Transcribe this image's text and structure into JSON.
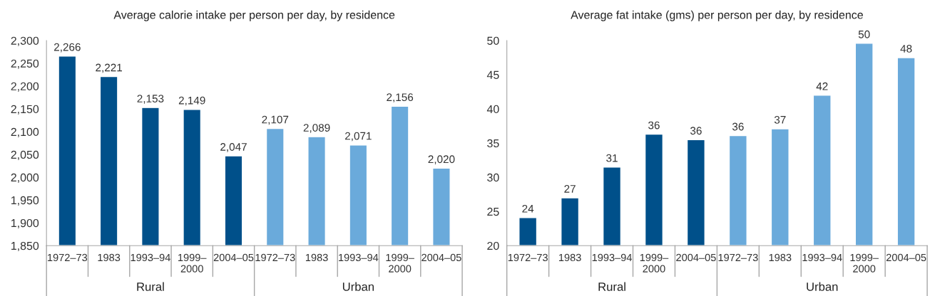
{
  "chart_data": [
    {
      "type": "bar",
      "title": "Average calorie intake per person per day, by residence",
      "categories": [
        "1972–73",
        "1983",
        "1993–94",
        "1999–\n2000",
        "2004–05",
        "1972–73",
        "1983",
        "1993–94",
        "1999–\n2000",
        "2004–05"
      ],
      "values": [
        2266,
        2221,
        2153,
        2149,
        2047,
        2107,
        2089,
        2071,
        2156,
        2020
      ],
      "value_labels": [
        "2,266",
        "2,221",
        "2,153",
        "2,149",
        "2,047",
        "2,107",
        "2,089",
        "2,071",
        "2,156",
        "2,020"
      ],
      "colors": [
        "#00508a",
        "#00508a",
        "#00508a",
        "#00508a",
        "#00508a",
        "#6aaadb",
        "#6aaadb",
        "#6aaadb",
        "#6aaadb",
        "#6aaadb"
      ],
      "ylim": [
        1850,
        2300
      ],
      "yticks": [
        {
          "value": 1850,
          "label": "1,850"
        },
        {
          "value": 1900,
          "label": "1,900"
        },
        {
          "value": 1950,
          "label": "1,950"
        },
        {
          "value": 2000,
          "label": "2,000"
        },
        {
          "value": 2050,
          "label": "2,050"
        },
        {
          "value": 2100,
          "label": "2,100"
        },
        {
          "value": 2150,
          "label": "2,150"
        },
        {
          "value": 2200,
          "label": "2,200"
        },
        {
          "value": 2250,
          "label": "2,250"
        },
        {
          "value": 2300,
          "label": "2,300"
        }
      ],
      "annotations": [
        "Rural",
        "Urban"
      ]
    },
    {
      "type": "bar",
      "title": "Average fat intake (gms) per person per day, by residence",
      "categories": [
        "1972–73",
        "1983",
        "1993–94",
        "1999–\n2000",
        "2004–05",
        "1972–73",
        "1983",
        "1993–94",
        "1999–\n2000",
        "2004–05"
      ],
      "values": [
        24.1,
        27.0,
        31.5,
        36.3,
        35.5,
        36.1,
        37.1,
        42.0,
        49.6,
        47.5
      ],
      "value_labels": [
        "24",
        "27",
        "31",
        "36",
        "36",
        "36",
        "37",
        "42",
        "50",
        "48"
      ],
      "colors": [
        "#00508a",
        "#00508a",
        "#00508a",
        "#00508a",
        "#00508a",
        "#6aaadb",
        "#6aaadb",
        "#6aaadb",
        "#6aaadb",
        "#6aaadb"
      ],
      "ylim": [
        20,
        50
      ],
      "yticks": [
        20,
        25,
        30,
        35,
        40,
        45,
        50
      ],
      "annotations": [
        "Rural",
        "Urban"
      ]
    }
  ]
}
